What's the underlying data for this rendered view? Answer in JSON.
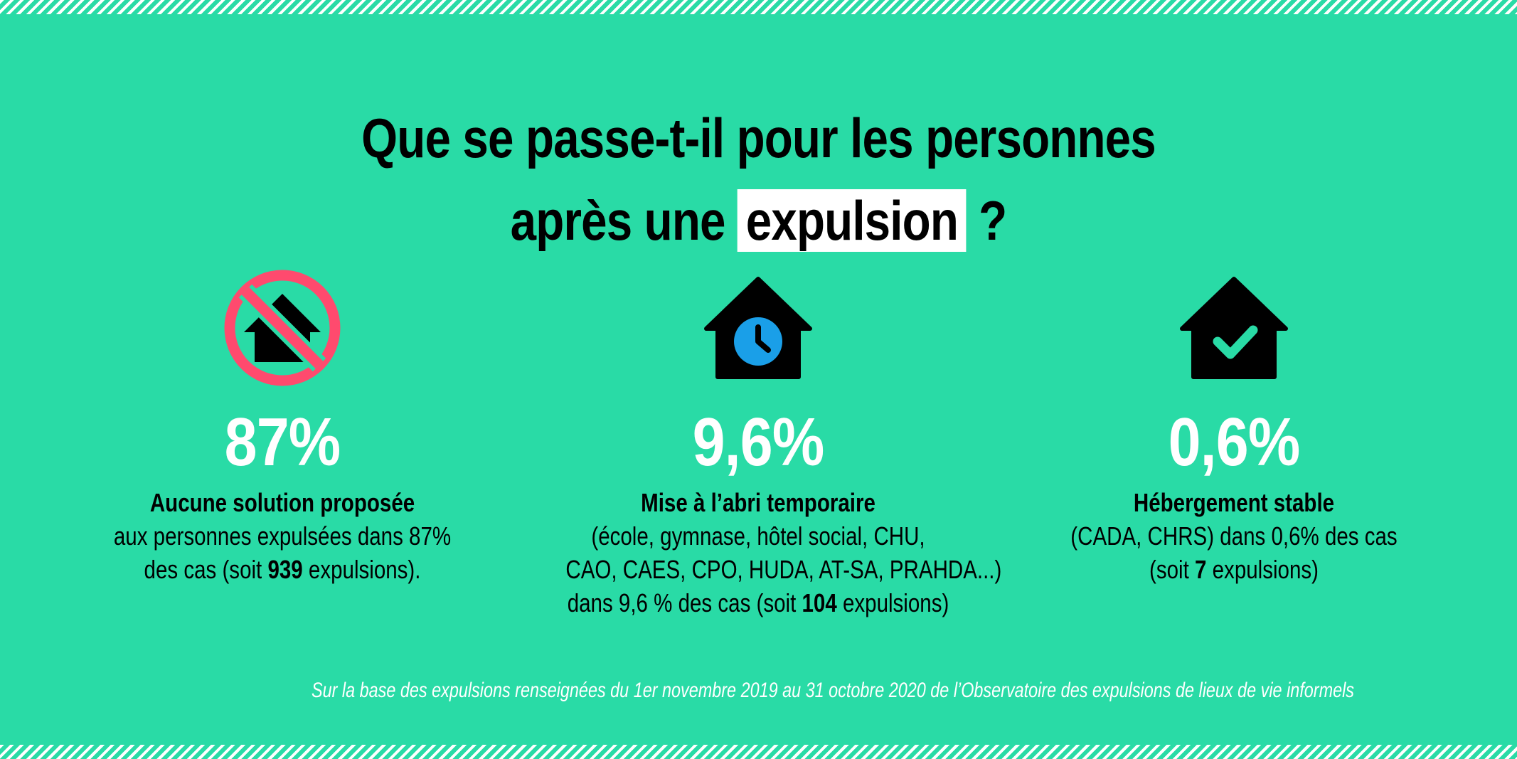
{
  "title": {
    "line1": "Que se passe-t-il pour les personnes",
    "line2_before": "après une ",
    "line2_highlight": "expulsion",
    "line2_after": " ?"
  },
  "stats": [
    {
      "value": "87%",
      "label": "Aucune solution proposée",
      "desc_line1": "aux personnes expulsées dans 87%",
      "desc_line2_before": "des cas (soit ",
      "desc_line2_bold": "939",
      "desc_line2_after": " expulsions).",
      "icon": "house-prohibited-icon"
    },
    {
      "value": "9,6%",
      "label": "Mise à l’abri temporaire",
      "desc_line1": "(école, gymnase, hôtel social, CHU,",
      "desc_line2": "CAO, CAES, CPO, HUDA, AT-SA, PRAHDA...)",
      "desc_line3_before": "dans 9,6 % des cas (soit ",
      "desc_line3_bold": "104",
      "desc_line3_after": " expulsions)",
      "icon": "house-clock-icon"
    },
    {
      "value": "0,6%",
      "label": "Hébergement stable",
      "desc_line1": "(CADA, CHRS) dans 0,6% des cas",
      "desc_line2_before": "(soit ",
      "desc_line2_bold": "7",
      "desc_line2_after": " expulsions)",
      "icon": "house-check-icon"
    }
  ],
  "footnote": "Sur la base des expulsions renseignées du 1er novembre 2019 au 31 octobre 2020 de l’Observatoire des expulsions de lieux de vie informels",
  "colors": {
    "background": "#29dba6",
    "prohibited": "#ff4a6e",
    "clock": "#1a9fe8",
    "white": "#ffffff"
  }
}
